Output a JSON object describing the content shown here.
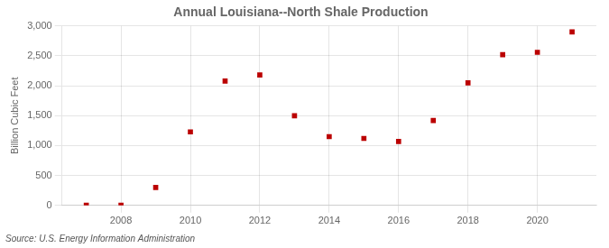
{
  "chart_data": {
    "type": "scatter",
    "title": "Annual Louisiana--North Shale Production",
    "ylabel": "Billion Cubic Feet",
    "annotation": "Source: U.S. Energy Information Administration",
    "x": [
      2007,
      2008,
      2009,
      2010,
      2011,
      2012,
      2013,
      2014,
      2015,
      2016,
      2017,
      2018,
      2019,
      2020,
      2021
    ],
    "values": [
      3,
      5,
      300,
      1230,
      2080,
      2180,
      1500,
      1150,
      1120,
      1070,
      1420,
      2050,
      2520,
      2560,
      2900
    ],
    "color": "#bb0000",
    "marker": "square",
    "xlim": [
      2006.3,
      2021.7
    ],
    "xticks": [
      2008,
      2010,
      2012,
      2014,
      2016,
      2018,
      2020
    ],
    "ylim": [
      0,
      3000
    ],
    "yticks": [
      0,
      500,
      {
        "value": 1000,
        "label": "1,000"
      },
      {
        "value": 1500,
        "label": "1,500"
      },
      {
        "value": 2000,
        "label": "2,000"
      },
      {
        "value": 2500,
        "label": "2,500"
      },
      {
        "value": 3000,
        "label": "3,000"
      }
    ],
    "grid": true
  }
}
